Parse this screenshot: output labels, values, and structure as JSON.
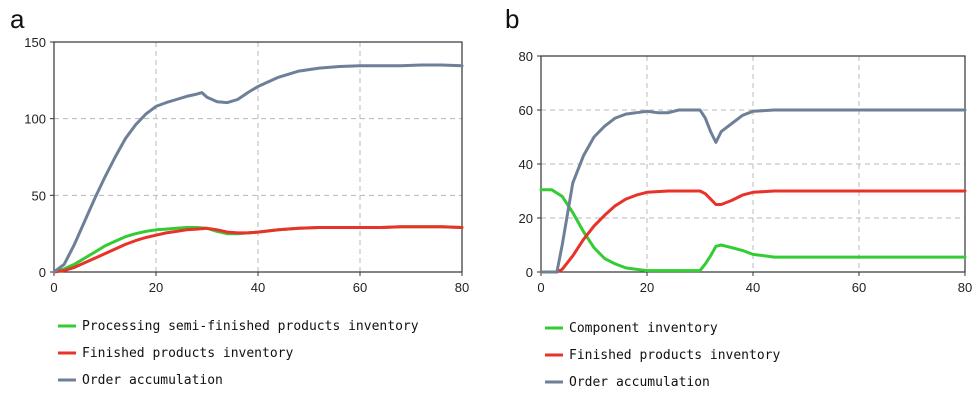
{
  "chart_data": [
    {
      "type": "line",
      "panel_label": "a",
      "xlim": [
        0,
        80
      ],
      "ylim": [
        0,
        150
      ],
      "xticks": [
        0,
        20,
        40,
        60,
        80
      ],
      "yticks": [
        0,
        50,
        100,
        150
      ],
      "grid": true,
      "legend_position": "bottom",
      "series": [
        {
          "name": "Processing semi-finished products inventory",
          "color": "#33cc33",
          "x": [
            0,
            2,
            4,
            6,
            8,
            10,
            12,
            14,
            16,
            18,
            20,
            22,
            24,
            26,
            28,
            30,
            32,
            34,
            36,
            38,
            40,
            44,
            48,
            52,
            56,
            60,
            64,
            68,
            72,
            76,
            80
          ],
          "y": [
            0,
            2,
            5,
            9,
            13,
            17,
            20,
            23,
            25,
            26.5,
            27.5,
            28,
            28.5,
            29,
            29,
            28.5,
            26.5,
            25,
            25,
            25.5,
            26,
            27.5,
            28.5,
            29,
            29,
            29,
            29,
            29.5,
            29.5,
            29.5,
            29
          ]
        },
        {
          "name": "Finished products inventory",
          "color": "#e8322a",
          "x": [
            0,
            2,
            4,
            6,
            8,
            10,
            12,
            14,
            16,
            18,
            20,
            22,
            24,
            26,
            28,
            30,
            32,
            34,
            36,
            38,
            40,
            44,
            48,
            52,
            56,
            60,
            64,
            68,
            72,
            76,
            80
          ],
          "y": [
            0,
            1,
            3,
            6,
            9,
            12,
            15,
            18,
            20.5,
            22.5,
            24,
            25.5,
            26.5,
            27.5,
            28,
            28.5,
            27.5,
            26,
            25.5,
            25.5,
            26,
            27.5,
            28.5,
            29,
            29,
            29,
            29,
            29.5,
            29.5,
            29.5,
            29
          ]
        },
        {
          "name": "Order accumulation",
          "color": "#6e7f98",
          "x": [
            0,
            2,
            4,
            6,
            8,
            10,
            12,
            14,
            16,
            18,
            20,
            22,
            24,
            26,
            28,
            29,
            30,
            32,
            34,
            36,
            38,
            40,
            44,
            48,
            52,
            56,
            60,
            64,
            68,
            72,
            76,
            80
          ],
          "y": [
            0,
            5,
            18,
            33,
            48,
            62,
            75,
            87,
            96,
            103,
            108,
            110.5,
            112.5,
            114.5,
            116,
            117,
            114,
            111,
            110.5,
            112.5,
            117,
            121,
            127,
            131,
            133,
            134,
            134.5,
            134.5,
            134.5,
            135,
            135,
            134.5
          ]
        }
      ]
    },
    {
      "type": "line",
      "panel_label": "b",
      "xlim": [
        0,
        80
      ],
      "ylim": [
        0,
        80
      ],
      "xticks": [
        0,
        20,
        40,
        60,
        80
      ],
      "yticks": [
        0,
        20,
        40,
        60,
        80
      ],
      "grid": true,
      "legend_position": "bottom",
      "series": [
        {
          "name": "Component inventory",
          "color": "#33cc33",
          "x": [
            0,
            2,
            4,
            6,
            8,
            10,
            12,
            14,
            16,
            18,
            20,
            24,
            28,
            30,
            31,
            32,
            33,
            34,
            36,
            38,
            40,
            44,
            48,
            52,
            56,
            60,
            64,
            68,
            72,
            76,
            80
          ],
          "y": [
            30.5,
            30.5,
            28,
            22,
            15,
            9,
            5,
            3,
            1.5,
            1,
            0.5,
            0.5,
            0.5,
            0.5,
            3,
            6,
            9.5,
            10,
            9,
            8,
            6.5,
            5.5,
            5.5,
            5.5,
            5.5,
            5.5,
            5.5,
            5.5,
            5.5,
            5.5,
            5.5
          ]
        },
        {
          "name": "Finished products inventory",
          "color": "#e8322a",
          "x": [
            0,
            2,
            3,
            4,
            6,
            8,
            10,
            12,
            14,
            16,
            18,
            20,
            24,
            28,
            30,
            31,
            32,
            33,
            34,
            36,
            38,
            40,
            44,
            48,
            52,
            56,
            60,
            64,
            68,
            72,
            76,
            80
          ],
          "y": [
            0,
            0,
            0,
            1,
            6,
            12,
            17,
            21,
            24.5,
            27,
            28.5,
            29.5,
            30,
            30,
            30,
            29,
            27,
            25,
            25,
            26.5,
            28.5,
            29.5,
            30,
            30,
            30,
            30,
            30,
            30,
            30,
            30,
            30,
            30
          ]
        },
        {
          "name": "Order accumulation",
          "color": "#6e7f98",
          "x": [
            0,
            2,
            3,
            4,
            6,
            8,
            10,
            12,
            14,
            16,
            18,
            20,
            22,
            24,
            26,
            28,
            30,
            31,
            32,
            33,
            34,
            36,
            38,
            40,
            44,
            48,
            52,
            56,
            60,
            64,
            68,
            72,
            76,
            80
          ],
          "y": [
            0,
            0,
            0,
            10,
            33,
            43,
            50,
            54,
            57,
            58.5,
            59,
            59.5,
            59,
            59,
            60,
            60,
            60,
            57,
            52,
            48,
            52,
            55,
            58,
            59.5,
            60,
            60,
            60,
            60,
            60,
            60,
            60,
            60,
            60,
            60
          ]
        }
      ]
    }
  ]
}
